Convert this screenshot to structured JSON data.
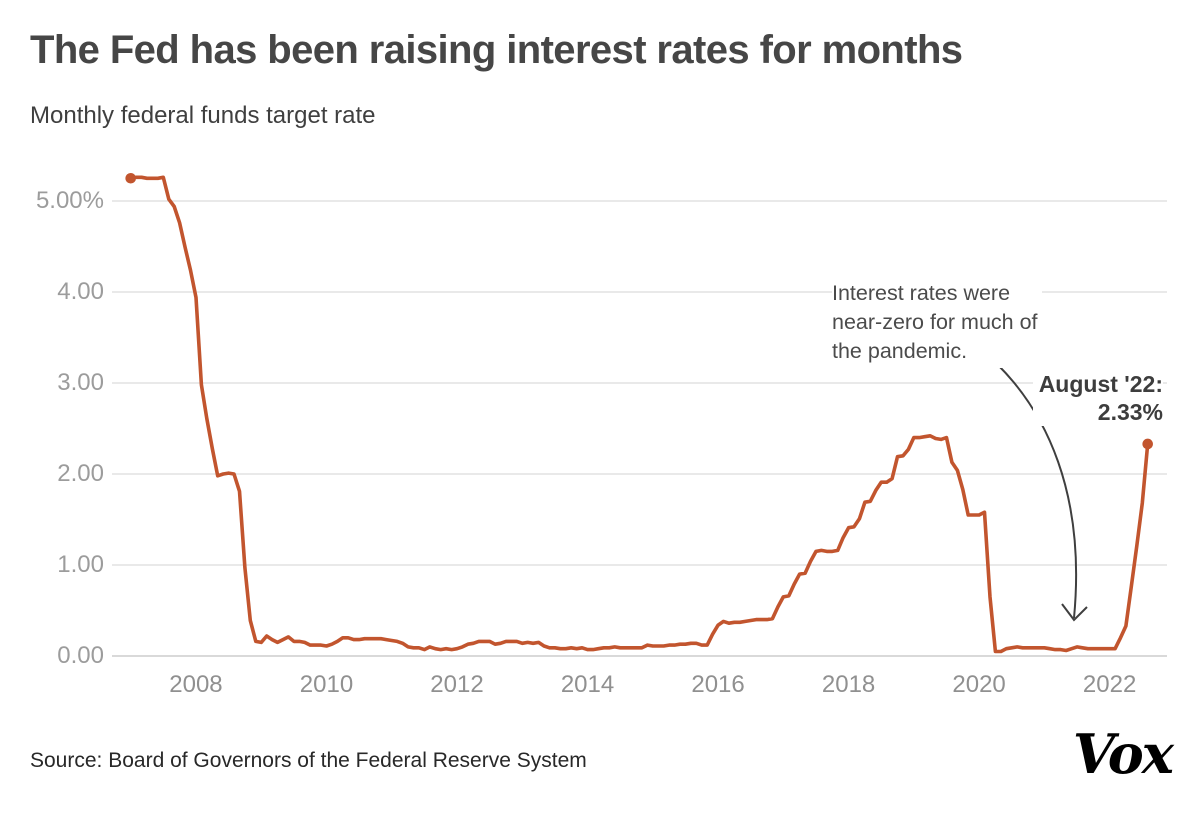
{
  "header": {
    "title": "The Fed has been raising interest rates for months",
    "subtitle": "Monthly federal funds target rate"
  },
  "chart_data": {
    "type": "line",
    "title": "The Fed has been raising interest rates for months",
    "subtitle": "Monthly federal funds target rate",
    "series_name": "Federal funds rate (%)",
    "frequency": "monthly",
    "x_start": "2007-01",
    "x_end": "2022-08",
    "unit": "percent",
    "ylim": [
      0,
      5.5
    ],
    "grid": "horizontal",
    "legend": "none",
    "line_color": "#c2552e",
    "values": [
      5.25,
      5.26,
      5.26,
      5.25,
      5.25,
      5.25,
      5.26,
      5.02,
      4.94,
      4.76,
      4.49,
      4.24,
      3.94,
      2.98,
      2.61,
      2.28,
      1.98,
      2.0,
      2.01,
      2.0,
      1.81,
      0.97,
      0.39,
      0.16,
      0.15,
      0.22,
      0.18,
      0.15,
      0.18,
      0.21,
      0.16,
      0.16,
      0.15,
      0.12,
      0.12,
      0.12,
      0.11,
      0.13,
      0.16,
      0.2,
      0.2,
      0.18,
      0.18,
      0.19,
      0.19,
      0.19,
      0.19,
      0.18,
      0.17,
      0.16,
      0.14,
      0.1,
      0.09,
      0.09,
      0.07,
      0.1,
      0.08,
      0.07,
      0.08,
      0.07,
      0.08,
      0.1,
      0.13,
      0.14,
      0.16,
      0.16,
      0.16,
      0.13,
      0.14,
      0.16,
      0.16,
      0.16,
      0.14,
      0.15,
      0.14,
      0.15,
      0.11,
      0.09,
      0.09,
      0.08,
      0.08,
      0.09,
      0.08,
      0.09,
      0.07,
      0.07,
      0.08,
      0.09,
      0.09,
      0.1,
      0.09,
      0.09,
      0.09,
      0.09,
      0.09,
      0.12,
      0.11,
      0.11,
      0.11,
      0.12,
      0.12,
      0.13,
      0.13,
      0.14,
      0.14,
      0.12,
      0.12,
      0.24,
      0.34,
      0.38,
      0.36,
      0.37,
      0.37,
      0.38,
      0.39,
      0.4,
      0.4,
      0.4,
      0.41,
      0.54,
      0.65,
      0.66,
      0.79,
      0.9,
      0.91,
      1.04,
      1.15,
      1.16,
      1.15,
      1.15,
      1.16,
      1.3,
      1.41,
      1.42,
      1.51,
      1.69,
      1.7,
      1.82,
      1.91,
      1.91,
      1.95,
      2.19,
      2.2,
      2.27,
      2.4,
      2.4,
      2.41,
      2.42,
      2.39,
      2.38,
      2.4,
      2.13,
      2.04,
      1.83,
      1.55,
      1.55,
      1.55,
      1.58,
      0.65,
      0.05,
      0.05,
      0.08,
      0.09,
      0.1,
      0.09,
      0.09,
      0.09,
      0.09,
      0.09,
      0.08,
      0.07,
      0.07,
      0.06,
      0.08,
      0.1,
      0.09,
      0.08,
      0.08,
      0.08,
      0.08,
      0.08,
      0.08,
      0.2,
      0.33,
      0.77,
      1.21,
      1.68,
      2.33
    ],
    "y_ticks": [
      "5.00%",
      "4.00",
      "3.00",
      "2.00",
      "1.00",
      "0.00"
    ],
    "y_tick_values": [
      5,
      4,
      3,
      2,
      1,
      0
    ],
    "x_ticks": [
      "2008",
      "2010",
      "2012",
      "2014",
      "2016",
      "2018",
      "2020",
      "2022"
    ],
    "x_tick_years": [
      2008,
      2010,
      2012,
      2014,
      2016,
      2018,
      2020,
      2022
    ],
    "annotations": {
      "note_lines": [
        "Interest rates were",
        "near-zero for much of",
        "the pandemic."
      ],
      "note_full": "Interest rates were near-zero for much of the pandemic.",
      "latest_line1": "August '22:",
      "latest_line2": "2.33%",
      "latest_value": 2.33
    }
  },
  "footer": {
    "source": "Source: Board of Governors of the Federal Reserve System",
    "logo_text": "Vox"
  }
}
